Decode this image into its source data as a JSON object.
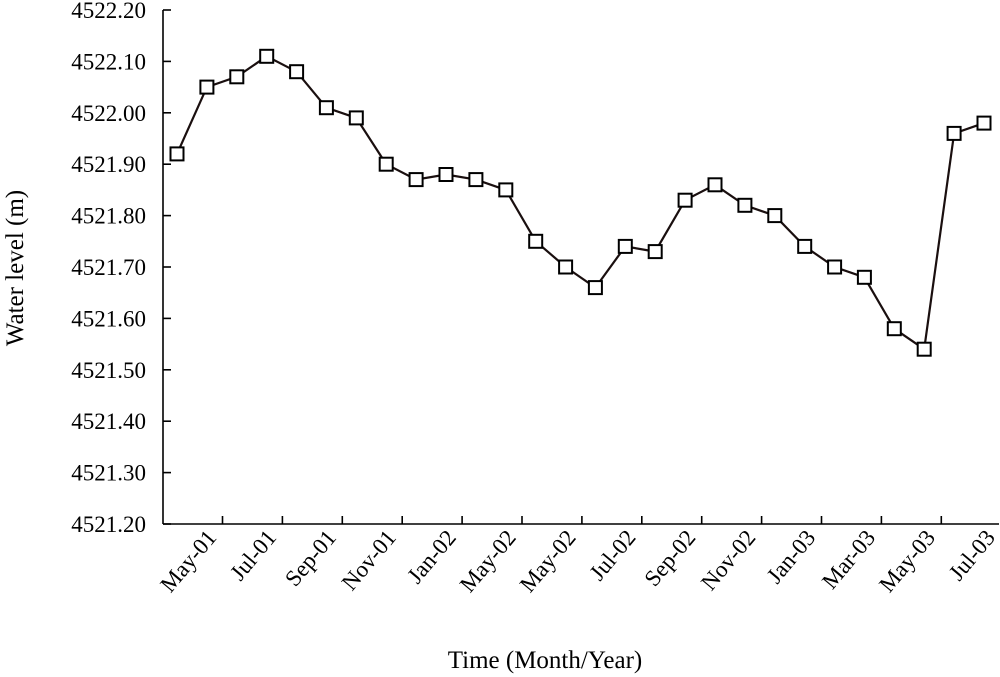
{
  "chart_data": {
    "type": "line",
    "title": "",
    "xlabel": "Time (Month/Year)",
    "ylabel": "Water level (m)",
    "ylim": [
      4521.2,
      4522.2
    ],
    "yticks": [
      "4521.20",
      "4521.30",
      "4521.40",
      "4521.50",
      "4521.60",
      "4521.70",
      "4521.80",
      "4521.90",
      "4522.00",
      "4522.10",
      "4522.20"
    ],
    "xtick_labels": [
      "May-01",
      "Jul-01",
      "Sep-01",
      "Nov-01",
      "Jan-02",
      "May-02",
      "May-02",
      "Jul-02",
      "Sep-02",
      "Nov-02",
      "Jan-03",
      "Mar-03",
      "May-03",
      "Jul-03"
    ],
    "grid": false,
    "series": [
      {
        "marker": "square",
        "color": "#1a0f0f",
        "values": [
          4521.92,
          4522.05,
          4522.07,
          4522.11,
          4522.08,
          4522.01,
          4521.99,
          4521.9,
          4521.87,
          4521.88,
          4521.87,
          4521.85,
          4521.75,
          4521.7,
          4521.66,
          4521.74,
          4521.73,
          4521.83,
          4521.86,
          4521.82,
          4521.8,
          4521.74,
          4521.7,
          4521.68,
          4521.58,
          4521.54,
          4521.96,
          4521.98
        ]
      }
    ]
  }
}
